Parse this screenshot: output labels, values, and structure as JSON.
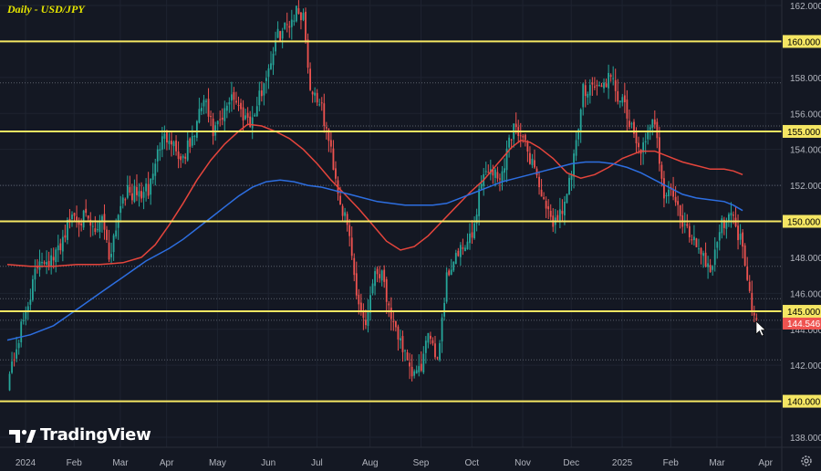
{
  "chart_data": {
    "type": "candlestick",
    "title": "Daily - USD/JPY",
    "logo_text": "TradingView",
    "ylim": [
      137.6,
      162.3
    ],
    "y_ticks": [
      "138.000",
      "140.000",
      "142.000",
      "144.000",
      "146.000",
      "148.000",
      "150.000",
      "152.000",
      "154.000",
      "156.000",
      "158.000",
      "160.000",
      "162.000"
    ],
    "x_labels": [
      "2024",
      "Feb",
      "Mar",
      "Apr",
      "May",
      "Jun",
      "Jul",
      "Aug",
      "Sep",
      "Oct",
      "Nov",
      "Dec",
      "2025",
      "Feb",
      "Mar",
      "Apr"
    ],
    "x_label_pos": [
      0,
      21,
      41,
      61,
      83,
      105,
      126,
      149,
      171,
      193,
      215,
      236,
      258,
      279,
      299,
      320
    ],
    "horizontal_levels": [
      {
        "value": 160.0,
        "label": "160.000"
      },
      {
        "value": 155.0,
        "label": "155.000"
      },
      {
        "value": 150.0,
        "label": "150.000"
      },
      {
        "value": 145.0,
        "label": "145.000"
      },
      {
        "value": 140.0,
        "label": "140.000"
      }
    ],
    "last_price": {
      "value": 144.546,
      "label": "144.546"
    },
    "close_anchors": [
      [
        0,
        141.0
      ],
      [
        8,
        145.0
      ],
      [
        14,
        148.0
      ],
      [
        20,
        147.8
      ],
      [
        28,
        150.4
      ],
      [
        34,
        150.1
      ],
      [
        38,
        149.3
      ],
      [
        41,
        150.5
      ],
      [
        44,
        148.0
      ],
      [
        50,
        151.6
      ],
      [
        57,
        151.5
      ],
      [
        61,
        151.7
      ],
      [
        66,
        154.3
      ],
      [
        70,
        154.9
      ],
      [
        75,
        153.4
      ],
      [
        80,
        154.5
      ],
      [
        85,
        156.8
      ],
      [
        89,
        154.9
      ],
      [
        93,
        155.6
      ],
      [
        97,
        157.2
      ],
      [
        101,
        156.1
      ],
      [
        106,
        155.6
      ],
      [
        110,
        157.3
      ],
      [
        117,
        160.3
      ],
      [
        121,
        160.9
      ],
      [
        125,
        161.7
      ],
      [
        128,
        161.5
      ],
      [
        131,
        157.4
      ],
      [
        135,
        156.7
      ],
      [
        140,
        153.9
      ],
      [
        144,
        151.1
      ],
      [
        148,
        149.1
      ],
      [
        151,
        146.0
      ],
      [
        155,
        144.3
      ],
      [
        158,
        146.9
      ],
      [
        162,
        147.4
      ],
      [
        166,
        144.2
      ],
      [
        170,
        143.5
      ],
      [
        174,
        141.5
      ],
      [
        178,
        141.6
      ],
      [
        183,
        143.8
      ],
      [
        186,
        142.4
      ],
      [
        190,
        146.9
      ],
      [
        193,
        147.9
      ],
      [
        197,
        148.4
      ],
      [
        201,
        149.1
      ],
      [
        205,
        152.4
      ],
      [
        209,
        153.0
      ],
      [
        213,
        152.2
      ],
      [
        217,
        154.5
      ],
      [
        220,
        155.5
      ],
      [
        224,
        154.1
      ],
      [
        228,
        153.1
      ],
      [
        233,
        150.4
      ],
      [
        237,
        150.0
      ],
      [
        242,
        151.4
      ],
      [
        246,
        154.1
      ],
      [
        249,
        157.3
      ],
      [
        252,
        157.6
      ],
      [
        257,
        157.4
      ],
      [
        260,
        158.0
      ],
      [
        263,
        157.3
      ],
      [
        267,
        156.2
      ],
      [
        271,
        154.6
      ],
      [
        275,
        154.0
      ],
      [
        280,
        155.7
      ],
      [
        284,
        151.5
      ],
      [
        288,
        151.6
      ],
      [
        292,
        149.7
      ],
      [
        296,
        149.2
      ],
      [
        300,
        148.4
      ],
      [
        304,
        147.3
      ],
      [
        308,
        149.5
      ],
      [
        312,
        150.6
      ],
      [
        316,
        149.4
      ],
      [
        318,
        148.7
      ],
      [
        322,
        145.4
      ],
      [
        324,
        144.55
      ]
    ],
    "sma_red": [
      [
        0,
        147.6
      ],
      [
        10,
        147.5
      ],
      [
        20,
        147.5
      ],
      [
        30,
        147.6
      ],
      [
        40,
        147.6
      ],
      [
        50,
        147.7
      ],
      [
        58,
        148.0
      ],
      [
        64,
        148.7
      ],
      [
        70,
        149.8
      ],
      [
        76,
        151.0
      ],
      [
        82,
        152.3
      ],
      [
        88,
        153.4
      ],
      [
        94,
        154.3
      ],
      [
        100,
        155.0
      ],
      [
        104,
        155.4
      ],
      [
        110,
        155.3
      ],
      [
        116,
        155.0
      ],
      [
        122,
        154.6
      ],
      [
        128,
        154.0
      ],
      [
        134,
        153.2
      ],
      [
        140,
        152.3
      ],
      [
        146,
        151.5
      ],
      [
        152,
        150.7
      ],
      [
        158,
        149.8
      ],
      [
        164,
        148.9
      ],
      [
        170,
        148.4
      ],
      [
        176,
        148.6
      ],
      [
        182,
        149.2
      ],
      [
        188,
        150.0
      ],
      [
        194,
        150.8
      ],
      [
        200,
        151.6
      ],
      [
        206,
        152.3
      ],
      [
        212,
        153.2
      ],
      [
        218,
        154.1
      ],
      [
        222,
        154.5
      ],
      [
        226,
        154.4
      ],
      [
        230,
        154.1
      ],
      [
        236,
        153.5
      ],
      [
        242,
        152.7
      ],
      [
        248,
        152.4
      ],
      [
        254,
        152.6
      ],
      [
        260,
        153.0
      ],
      [
        266,
        153.5
      ],
      [
        270,
        153.7
      ],
      [
        274,
        153.9
      ],
      [
        280,
        153.9
      ],
      [
        286,
        153.6
      ],
      [
        292,
        153.3
      ],
      [
        298,
        153.1
      ],
      [
        304,
        152.9
      ],
      [
        310,
        152.9
      ],
      [
        314,
        152.8
      ],
      [
        318,
        152.6
      ]
    ],
    "sma_blue": [
      [
        0,
        143.4
      ],
      [
        10,
        143.7
      ],
      [
        20,
        144.2
      ],
      [
        30,
        145.1
      ],
      [
        40,
        146.0
      ],
      [
        50,
        146.9
      ],
      [
        60,
        147.8
      ],
      [
        70,
        148.5
      ],
      [
        76,
        149.0
      ],
      [
        82,
        149.6
      ],
      [
        88,
        150.2
      ],
      [
        94,
        150.8
      ],
      [
        100,
        151.4
      ],
      [
        106,
        151.9
      ],
      [
        112,
        152.2
      ],
      [
        118,
        152.3
      ],
      [
        124,
        152.2
      ],
      [
        130,
        152.0
      ],
      [
        136,
        151.9
      ],
      [
        142,
        151.7
      ],
      [
        148,
        151.5
      ],
      [
        154,
        151.3
      ],
      [
        160,
        151.1
      ],
      [
        166,
        151.0
      ],
      [
        172,
        150.9
      ],
      [
        178,
        150.9
      ],
      [
        184,
        150.9
      ],
      [
        190,
        151.0
      ],
      [
        196,
        151.3
      ],
      [
        202,
        151.6
      ],
      [
        208,
        151.9
      ],
      [
        214,
        152.2
      ],
      [
        220,
        152.4
      ],
      [
        226,
        152.6
      ],
      [
        232,
        152.8
      ],
      [
        238,
        153.0
      ],
      [
        244,
        153.2
      ],
      [
        250,
        153.3
      ],
      [
        256,
        153.3
      ],
      [
        262,
        153.2
      ],
      [
        268,
        153.0
      ],
      [
        274,
        152.7
      ],
      [
        280,
        152.3
      ],
      [
        286,
        151.9
      ],
      [
        292,
        151.5
      ],
      [
        298,
        151.3
      ],
      [
        304,
        151.2
      ],
      [
        310,
        151.1
      ],
      [
        314,
        150.9
      ],
      [
        318,
        150.6
      ]
    ]
  },
  "colors": {
    "background": "#141823",
    "grid": "#1e2330",
    "dotted_level": "#5a5f6b",
    "up": "#26a69a",
    "down": "#ef5350",
    "sma_red": "#e5453c",
    "sma_blue": "#2d6ee0",
    "level_line": "#f5e663",
    "axis_text": "#b2b5be",
    "price_tag": "#ef5350",
    "title": "#e6e600"
  },
  "icons": [
    "tradingview-logo-icon",
    "gear-icon",
    "cursor-arrow-icon"
  ]
}
